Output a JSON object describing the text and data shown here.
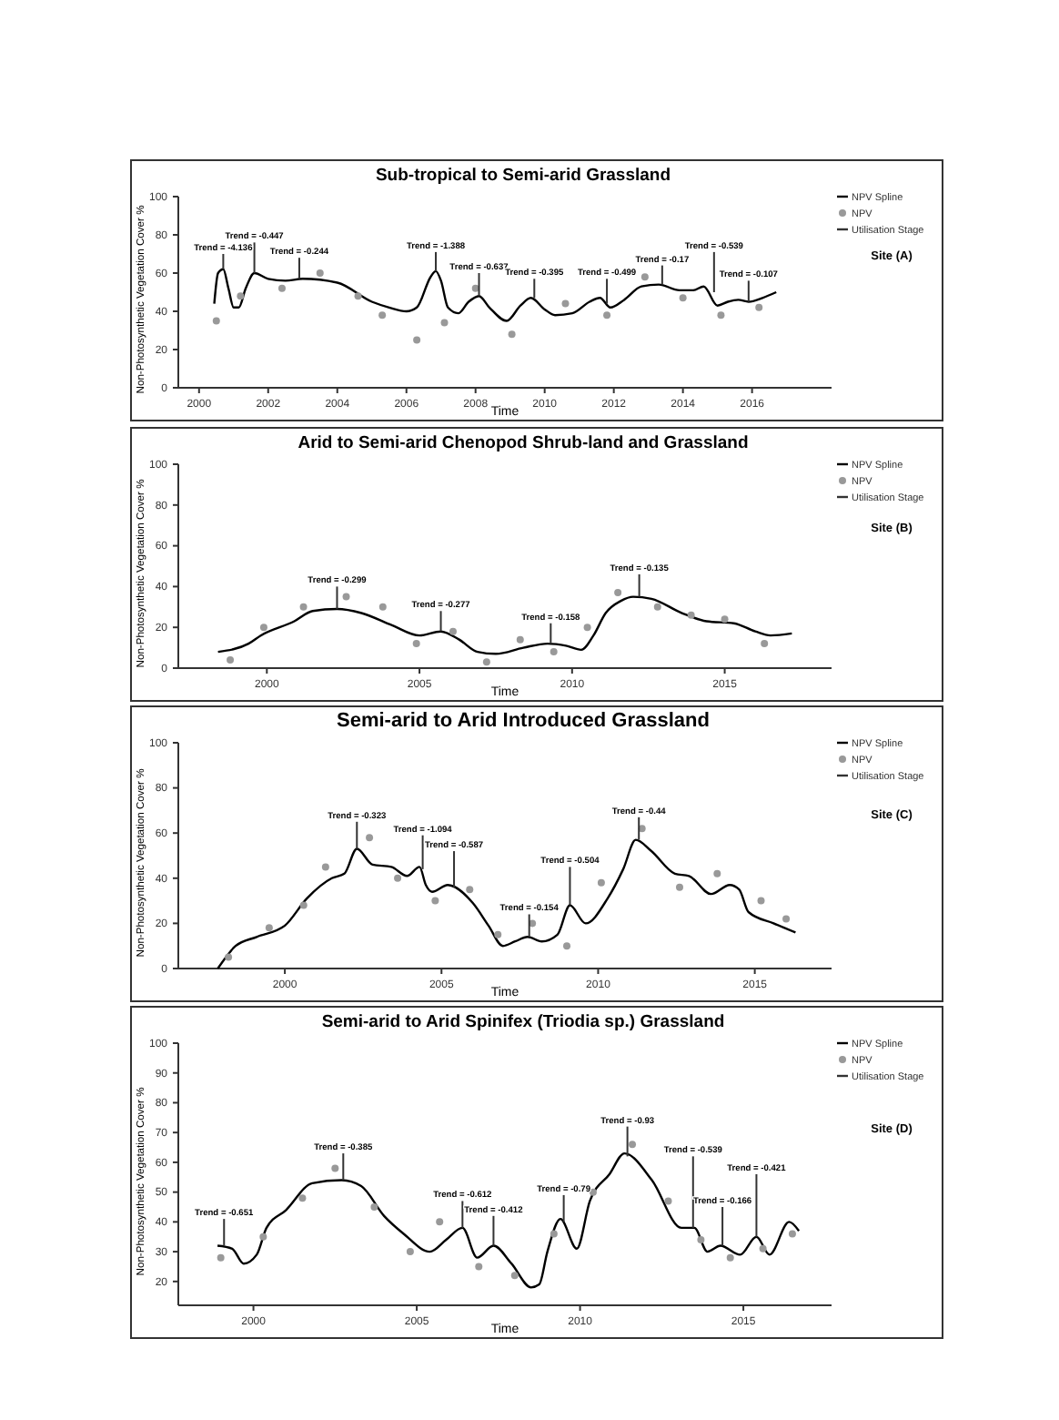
{
  "chart_data": [
    {
      "type": "line",
      "title": "Sub-tropical to Semi-arid Grassland",
      "xlabel": "Time",
      "ylabel": "Non-Photosynthetic Vegetation Cover %",
      "xlim": [
        1999.4,
        2018.3
      ],
      "xticks": [
        2000,
        2002,
        2004,
        2006,
        2008,
        2010,
        2012,
        2014,
        2016
      ],
      "ylim": [
        0,
        100
      ],
      "yticks": [
        0,
        20,
        40,
        60,
        80,
        100
      ],
      "legend": "right",
      "series": [
        {
          "name": "NPV Spline",
          "color": "#000000",
          "x": [
            2000.44,
            2000.55,
            2000.7,
            2000.85,
            2001.0,
            2001.15,
            2001.35,
            2001.6,
            2002,
            2002.5,
            2003,
            2004,
            2005,
            2005.5,
            2006,
            2006.3,
            2006.7,
            2006.85,
            2007,
            2007.2,
            2007.5,
            2007.8,
            2008.1,
            2008.4,
            2008.9,
            2009.3,
            2009.6,
            2010,
            2010.3,
            2010.8,
            2011.3,
            2011.6,
            2011.9,
            2012.3,
            2012.8,
            2013.3,
            2013.9,
            2014.3,
            2014.6,
            2015.0,
            2015.3,
            2015.6,
            2015.9,
            2016.3,
            2016.7
          ],
          "values": [
            44,
            60,
            62,
            52,
            42,
            42,
            52,
            60,
            57,
            56,
            57,
            55,
            45,
            42,
            40,
            42,
            58,
            61,
            56,
            42,
            39,
            45,
            48,
            42,
            35,
            43,
            47,
            41,
            38,
            39,
            45,
            47,
            42,
            46,
            53,
            54,
            51,
            51,
            53,
            43,
            45,
            46,
            45,
            47,
            50
          ]
        },
        {
          "name": "NPV",
          "type": "scatter",
          "color": "#999999",
          "x": [
            2000.5,
            2001.2,
            2002.4,
            2003.5,
            2004.6,
            2005.3,
            2006.3,
            2007.1,
            2008.0,
            2009.05,
            2010.6,
            2011.8,
            2012.9,
            2014.0,
            2015.1,
            2016.2
          ],
          "values": [
            35,
            48,
            52,
            60,
            48,
            38,
            25,
            34,
            52,
            28,
            44,
            38,
            58,
            47,
            38,
            42
          ]
        },
        {
          "name": "Utilisation Stage",
          "type": "bar",
          "color": "#333333",
          "x": [
            2000.7,
            2001.6,
            2002.9,
            2006.85,
            2008.1,
            2009.7,
            2011.8,
            2013.4,
            2014.9,
            2015.9
          ],
          "base": [
            62,
            60,
            57,
            61,
            48,
            47,
            44,
            54,
            50,
            45
          ],
          "values": [
            8,
            16,
            11,
            10,
            12,
            10,
            13,
            10,
            21,
            11
          ]
        }
      ],
      "annotations": [
        {
          "text": "Trend = -4.136",
          "x": 2000.7,
          "y": 70
        },
        {
          "text": "Trend = -0.447",
          "x": 2001.6,
          "y": 76
        },
        {
          "text": "Trend = -0.244",
          "x": 2002.9,
          "y": 68
        },
        {
          "text": "Trend = -1.388",
          "x": 2006.85,
          "y": 71
        },
        {
          "text": "Trend = -0.637",
          "x": 2008.1,
          "y": 60
        },
        {
          "text": "Trend = -0.395",
          "x": 2009.7,
          "y": 57
        },
        {
          "text": "Trend = -0.499",
          "x": 2011.8,
          "y": 57
        },
        {
          "text": "Trend = -0.17",
          "x": 2013.4,
          "y": 64
        },
        {
          "text": "Trend = -0.539",
          "x": 2014.9,
          "y": 71
        },
        {
          "text": "Trend = -0.107",
          "x": 2015.9,
          "y": 56
        },
        "Site (A)"
      ]
    },
    {
      "type": "line",
      "title": "Arid to Semi-arid Chenopod Shrub-land and Grassland",
      "xlabel": "Time",
      "ylabel": "Non-Photosynthetic Vegetation Cover %",
      "xlim": [
        1997.1,
        2018.5
      ],
      "xticks": [
        2000,
        2005,
        2010,
        2015
      ],
      "ylim": [
        0,
        100
      ],
      "yticks": [
        0,
        20,
        40,
        60,
        80,
        100
      ],
      "legend": "right",
      "series": [
        {
          "name": "NPV Spline",
          "color": "#000000",
          "x": [
            1998.4,
            1999.4,
            1999.8,
            2000.9,
            2001.5,
            2002.3,
            2003.1,
            2004.1,
            2005.0,
            2005.7,
            2006.3,
            2006.9,
            2007.5,
            2008.4,
            2009.2,
            2009.8,
            2010.3,
            2010.7,
            2011.1,
            2011.6,
            2012.0,
            2012.6,
            2013.6,
            2014.4,
            2015.3,
            2016.0,
            2016.5,
            2017.2
          ],
          "values": [
            8,
            12,
            16,
            23,
            28,
            29,
            27,
            21,
            16,
            18,
            14,
            8,
            7,
            10,
            12,
            11,
            9,
            16,
            27,
            33,
            35,
            34,
            27,
            23,
            22,
            18,
            16,
            17
          ]
        },
        {
          "name": "NPV",
          "type": "scatter",
          "color": "#999999",
          "x": [
            1998.8,
            1999.9,
            2001.2,
            2002.6,
            2003.8,
            2004.9,
            2006.1,
            2007.2,
            2008.3,
            2009.4,
            2010.5,
            2011.5,
            2012.8,
            2013.9,
            2015.0,
            2016.3
          ],
          "values": [
            4,
            20,
            30,
            35,
            30,
            12,
            18,
            3,
            14,
            8,
            20,
            37,
            30,
            26,
            24,
            12
          ]
        },
        {
          "name": "Utilisation Stage",
          "type": "bar",
          "color": "#333333",
          "x": [
            2002.3,
            2005.7,
            2009.3,
            2012.2
          ],
          "base": [
            29,
            18,
            12,
            35
          ],
          "values": [
            11,
            10,
            10,
            11
          ]
        }
      ],
      "annotations": [
        {
          "text": "Trend = -0.299",
          "x": 2002.3,
          "y": 40
        },
        {
          "text": "Trend = -0.277",
          "x": 2005.7,
          "y": 28
        },
        {
          "text": "Trend = -0.158",
          "x": 2009.3,
          "y": 22
        },
        {
          "text": "Trend = -0.135",
          "x": 2012.2,
          "y": 46
        },
        "Site  (B)"
      ]
    },
    {
      "type": "line",
      "title": "Semi-arid to Arid Introduced Grassland",
      "xlabel": "Time",
      "ylabel": "Non-Photosynthetic Vegetation Cover %",
      "xlim": [
        1996.6,
        2017.45
      ],
      "xticks": [
        2000,
        2005,
        2010,
        2015
      ],
      "ylim": [
        0,
        100
      ],
      "yticks": [
        0,
        20,
        40,
        60,
        80,
        100
      ],
      "legend": "right",
      "series": [
        {
          "name": "NPV Spline",
          "color": "#000000",
          "x": [
            1997.86,
            1998.43,
            1999.1,
            2000,
            2000.7,
            2001.5,
            2001.9,
            2002.3,
            2002.8,
            2003.4,
            2003.9,
            2004.3,
            2004.5,
            2004.7,
            2005.2,
            2006.0,
            2006.5,
            2006.96,
            2007.35,
            2007.75,
            2008.2,
            2008.7,
            2009.1,
            2009.6,
            2010.3,
            2010.8,
            2011.2,
            2011.7,
            2012.45,
            2012.9,
            2013.6,
            2014.2,
            2014.5,
            2014.8,
            2015.6,
            2016.3
          ],
          "values": [
            0,
            10,
            14,
            19,
            31,
            40,
            42,
            53,
            46,
            45,
            41,
            45,
            37,
            34,
            37,
            29,
            19,
            10,
            12,
            14,
            12,
            15,
            28,
            20,
            31,
            44,
            57,
            52,
            42,
            41,
            33,
            37,
            35,
            25,
            20,
            16
          ]
        },
        {
          "name": "NPV",
          "type": "scatter",
          "color": "#999999",
          "x": [
            1998.2,
            1999.5,
            2000.6,
            2001.3,
            2002.7,
            2003.6,
            2004.8,
            2005.9,
            2006.8,
            2007.9,
            2009.0,
            2010.1,
            2011.4,
            2012.6,
            2013.8,
            2015.2,
            2016.0
          ],
          "values": [
            5,
            18,
            28,
            45,
            58,
            40,
            30,
            35,
            15,
            20,
            10,
            38,
            62,
            36,
            42,
            30,
            22
          ]
        },
        {
          "name": "Utilisation Stage",
          "type": "bar",
          "color": "#333333",
          "x": [
            2002.3,
            2004.4,
            2005.4,
            2007.8,
            2009.1,
            2011.3
          ],
          "base": [
            53,
            44,
            36,
            14,
            28,
            57
          ],
          "values": [
            12,
            15,
            16,
            10,
            17,
            10
          ]
        }
      ],
      "annotations": [
        {
          "text": "Trend = -0.323",
          "x": 2002.3,
          "y": 65
        },
        {
          "text": "Trend = -1.094",
          "x": 2004.4,
          "y": 59
        },
        {
          "text": "Trend = -0.587",
          "x": 2005.4,
          "y": 52
        },
        {
          "text": "Trend = -0.154",
          "x": 2007.8,
          "y": 24
        },
        {
          "text": "Trend = -0.504",
          "x": 2009.1,
          "y": 45
        },
        {
          "text": "Trend = -0.44",
          "x": 2011.3,
          "y": 67
        },
        "Site (C)"
      ]
    },
    {
      "type": "line",
      "title": "Semi-arid to Arid Spinifex (Triodia sp.) Grassland",
      "xlabel": "Time",
      "ylabel": "Non-Photosynthetic Vegetation Cover %",
      "xlim": [
        1997.7,
        2017.7
      ],
      "xticks": [
        2000,
        2005,
        2010,
        2015
      ],
      "ylim": [
        12,
        100
      ],
      "yticks": [
        20,
        30,
        40,
        50,
        60,
        70,
        80,
        90,
        100
      ],
      "legend": "right",
      "series": [
        {
          "name": "NPV Spline",
          "color": "#000000",
          "x": [
            1998.9,
            1999.35,
            1999.7,
            2000.1,
            2000.4,
            2001.0,
            2001.8,
            2002.7,
            2003.3,
            2004.0,
            2004.6,
            2005.4,
            2005.9,
            2006.4,
            2006.85,
            2007.35,
            2007.9,
            2008.5,
            2008.75,
            2009.0,
            2009.4,
            2009.9,
            2010.3,
            2010.9,
            2011.36,
            2012.2,
            2013.1,
            2013.5,
            2013.9,
            2014.3,
            2014.9,
            2015.4,
            2015.8,
            2016.4,
            2016.7
          ],
          "values": [
            32,
            31,
            26,
            29,
            38,
            44,
            53,
            54,
            52,
            42,
            36,
            30,
            34,
            38,
            28,
            32,
            26,
            18,
            19,
            30,
            41,
            31,
            47,
            56,
            63,
            54,
            38,
            38,
            30,
            32,
            29,
            35,
            29,
            40,
            37
          ]
        },
        {
          "name": "NPV",
          "type": "scatter",
          "color": "#999999",
          "x": [
            1999.0,
            2000.3,
            2001.5,
            2002.5,
            2003.7,
            2004.8,
            2005.7,
            2006.9,
            2008.0,
            2009.2,
            2010.4,
            2011.6,
            2012.7,
            2013.7,
            2014.6,
            2015.6,
            2016.5
          ],
          "values": [
            28,
            35,
            48,
            58,
            45,
            30,
            40,
            25,
            22,
            36,
            50,
            66,
            47,
            34,
            28,
            31,
            36
          ]
        },
        {
          "name": "Utilisation Stage",
          "type": "bar",
          "color": "#333333",
          "x": [
            1999.1,
            2002.75,
            2006.4,
            2007.35,
            2009.5,
            2011.45,
            2013.46,
            2014.36,
            2015.4
          ],
          "base": [
            32,
            54,
            38,
            32,
            40,
            62,
            38,
            32,
            35
          ],
          "values": [
            9,
            9,
            9,
            10,
            9,
            10,
            24,
            13,
            21
          ]
        }
      ],
      "annotations": [
        {
          "text": "Trend = -0.651",
          "x": 1999.1,
          "y": 41
        },
        {
          "text": "Trend = -0.385",
          "x": 2002.75,
          "y": 63
        },
        {
          "text": "Trend = -0.612",
          "x": 2006.4,
          "y": 47
        },
        {
          "text": "Trend = -0.412",
          "x": 2007.35,
          "y": 42
        },
        {
          "text": "Trend = -0.79",
          "x": 2009.5,
          "y": 49
        },
        {
          "text": "Trend = -0.93",
          "x": 2011.45,
          "y": 72
        },
        {
          "text": "Trend = -0.539",
          "x": 2013.46,
          "y": 62
        },
        {
          "text": "Trend = -0.166",
          "x": 2014.36,
          "y": 45
        },
        {
          "text": "Trend = -0.421",
          "x": 2015.4,
          "y": 56
        },
        "Site (D)"
      ]
    }
  ]
}
